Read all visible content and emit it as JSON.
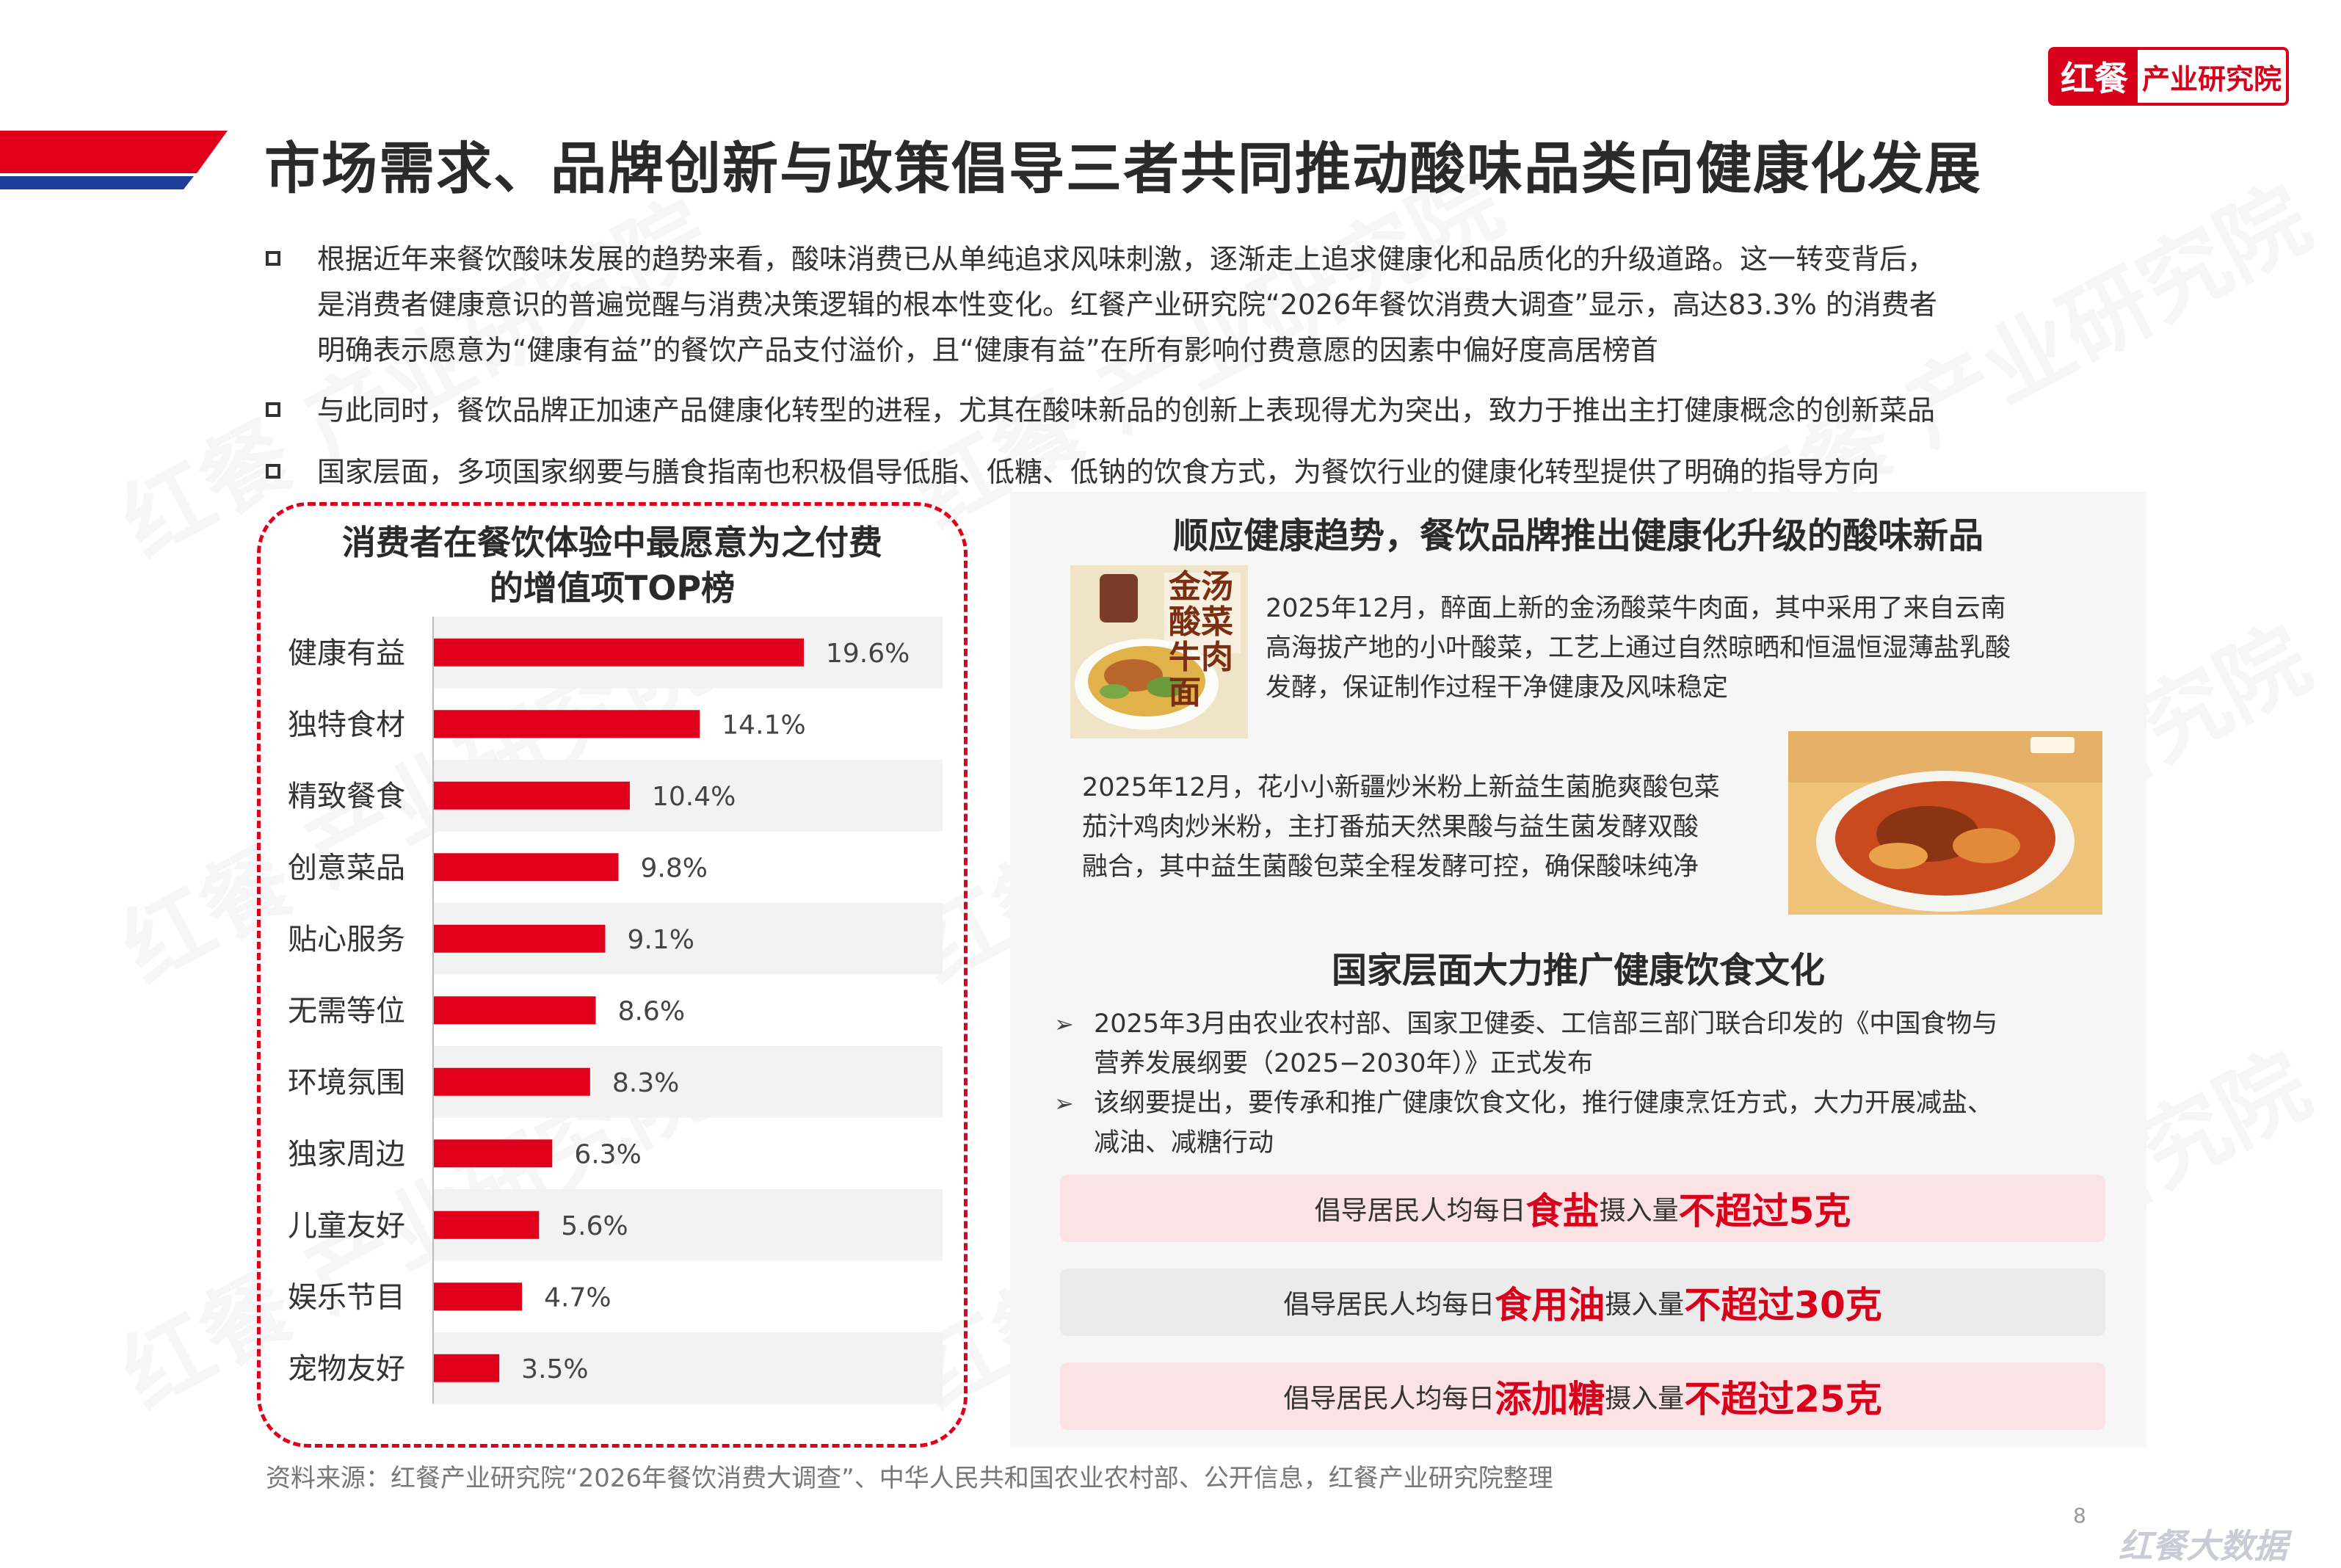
{
  "logo": {
    "brand": "红餐",
    "institute": "产业研究院"
  },
  "title": "市场需求、品牌创新与政策倡导三者共同推动酸味品类向健康化发展",
  "bullets": [
    {
      "lines": [
        "根据近年来餐饮酸味发展的趋势来看，酸味消费已从单纯追求风味刺激，逐渐走上追求健康化和品质化的升级道路。这一转变背后，",
        "是消费者健康意识的普遍觉醒与消费决策逻辑的根本性变化。红餐产业研究院“2026年餐饮消费大调查”显示，高达83.3% 的消费者",
        "明确表示愿意为“健康有益”的餐饮产品支付溢价，且“健康有益”在所有影响付费意愿的因素中偏好度高居榜首"
      ]
    },
    {
      "lines": [
        "与此同时，餐饮品牌正加速产品健康化转型的进程，尤其在酸味新品的创新上表现得尤为突出，致力于推出主打健康概念的创新菜品"
      ]
    },
    {
      "lines": [
        "国家层面，多项国家纲要与膳食指南也积极倡导低脂、低糖、低钠的饮食方式，为餐饮行业的健康化转型提供了明确的指导方向"
      ]
    }
  ],
  "chart_data": {
    "type": "bar",
    "orientation": "horizontal",
    "title_lines": [
      "消费者在餐饮体验中最愿意为之付费",
      "的增值项TOP榜"
    ],
    "categories": [
      "健康有益",
      "独特食材",
      "精致餐食",
      "创意菜品",
      "贴心服务",
      "无需等位",
      "环境氛围",
      "独家周边",
      "儿童友好",
      "娱乐节目",
      "宠物友好"
    ],
    "values": [
      19.6,
      14.1,
      10.4,
      9.8,
      9.1,
      8.6,
      8.3,
      6.3,
      5.6,
      4.7,
      3.5
    ],
    "value_labels": [
      "19.6%",
      "14.1%",
      "10.4%",
      "9.8%",
      "9.1%",
      "8.6%",
      "8.3%",
      "6.3%",
      "5.6%",
      "4.7%",
      "3.5%"
    ],
    "bar_color": "#e0001b",
    "xlim": [
      0,
      25
    ],
    "grid": false,
    "alternating_row_background": true
  },
  "right": {
    "section1_title": "顺应健康趋势，餐饮品牌推出健康化升级的酸味新品",
    "case1_lines": [
      "2025年12月，醉面上新的金汤酸菜牛肉面，其中采用了来自云南",
      "高海拔产地的小叶酸菜，工艺上通过自然晾晒和恒温恒湿薄盐乳酸",
      "发酵，保证制作过程干净健康及风味稳定"
    ],
    "case1_image_text": "金汤酸菜牛肉面",
    "case2_lines": [
      "2025年12月，花小小新疆炒米粉上新益生菌脆爽酸包菜",
      "茄汁鸡肉炒米粉，主打番茄天然果酸与益生菌发酵双酸",
      "融合，其中益生菌酸包菜全程发酵可控，确保酸味纯净"
    ],
    "section2_title": "国家层面大力推广健康饮食文化",
    "policy_items": [
      {
        "lines": [
          "2025年3月由农业农村部、国家卫健委、工信部三部门联合印发的《中国食物与",
          "营养发展纲要（2025−2030年）》正式发布"
        ]
      },
      {
        "lines": [
          "该纲要提出，要传承和推广健康饮食文化，推行健康烹饪方式，大力开展减盐、",
          "减油、减糖行动"
        ]
      }
    ],
    "stripes": [
      {
        "prefix": "倡导居民人均每日",
        "item": "食盐",
        "mid": "摄入量",
        "limit": "不超过5克",
        "bg": "#fbe3e5"
      },
      {
        "prefix": "倡导居民人均每日",
        "item": "食用油",
        "mid": "摄入量",
        "limit": "不超过30克",
        "bg": "#ebebeb"
      },
      {
        "prefix": "倡导居民人均每日",
        "item": "添加糖",
        "mid": "摄入量",
        "limit": "不超过25克",
        "bg": "#fbe3e5"
      }
    ]
  },
  "source": "资料来源：红餐产业研究院“2026年餐饮消费大调查”、中华人民共和国农业农村部、公开信息，红餐产业研究院整理",
  "page_number": "8",
  "footer_mark": "红餐大数据",
  "watermark": "红餐 产业研究院",
  "colors": {
    "accent": "#d8001b",
    "bar": "#e0001b",
    "title_blue": "#1d3f9a"
  }
}
